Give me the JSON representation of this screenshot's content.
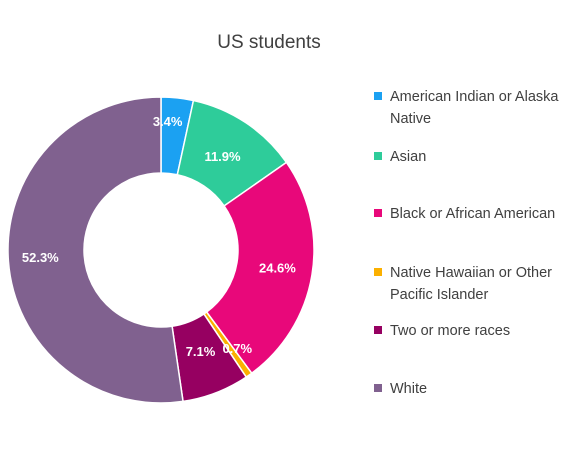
{
  "chart_data": {
    "type": "pie",
    "subtype": "doughnut",
    "title": "US students",
    "categories": [
      "American Indian or Alaska Native",
      "Asian",
      "Black or African American",
      "Native Hawaiian or Other Pacific Islander",
      "Two or more races",
      "White"
    ],
    "values": [
      3.4,
      11.9,
      24.6,
      0.7,
      7.1,
      52.3
    ],
    "data_labels": [
      "3.4%",
      "11.9%",
      "24.6%",
      "0.7%",
      "7.1%",
      "52.3%"
    ],
    "colors": [
      "#1ba1f2",
      "#2ecc9a",
      "#e8087a",
      "#fbb000",
      "#960061",
      "#80618f"
    ],
    "legend_position": "right"
  }
}
